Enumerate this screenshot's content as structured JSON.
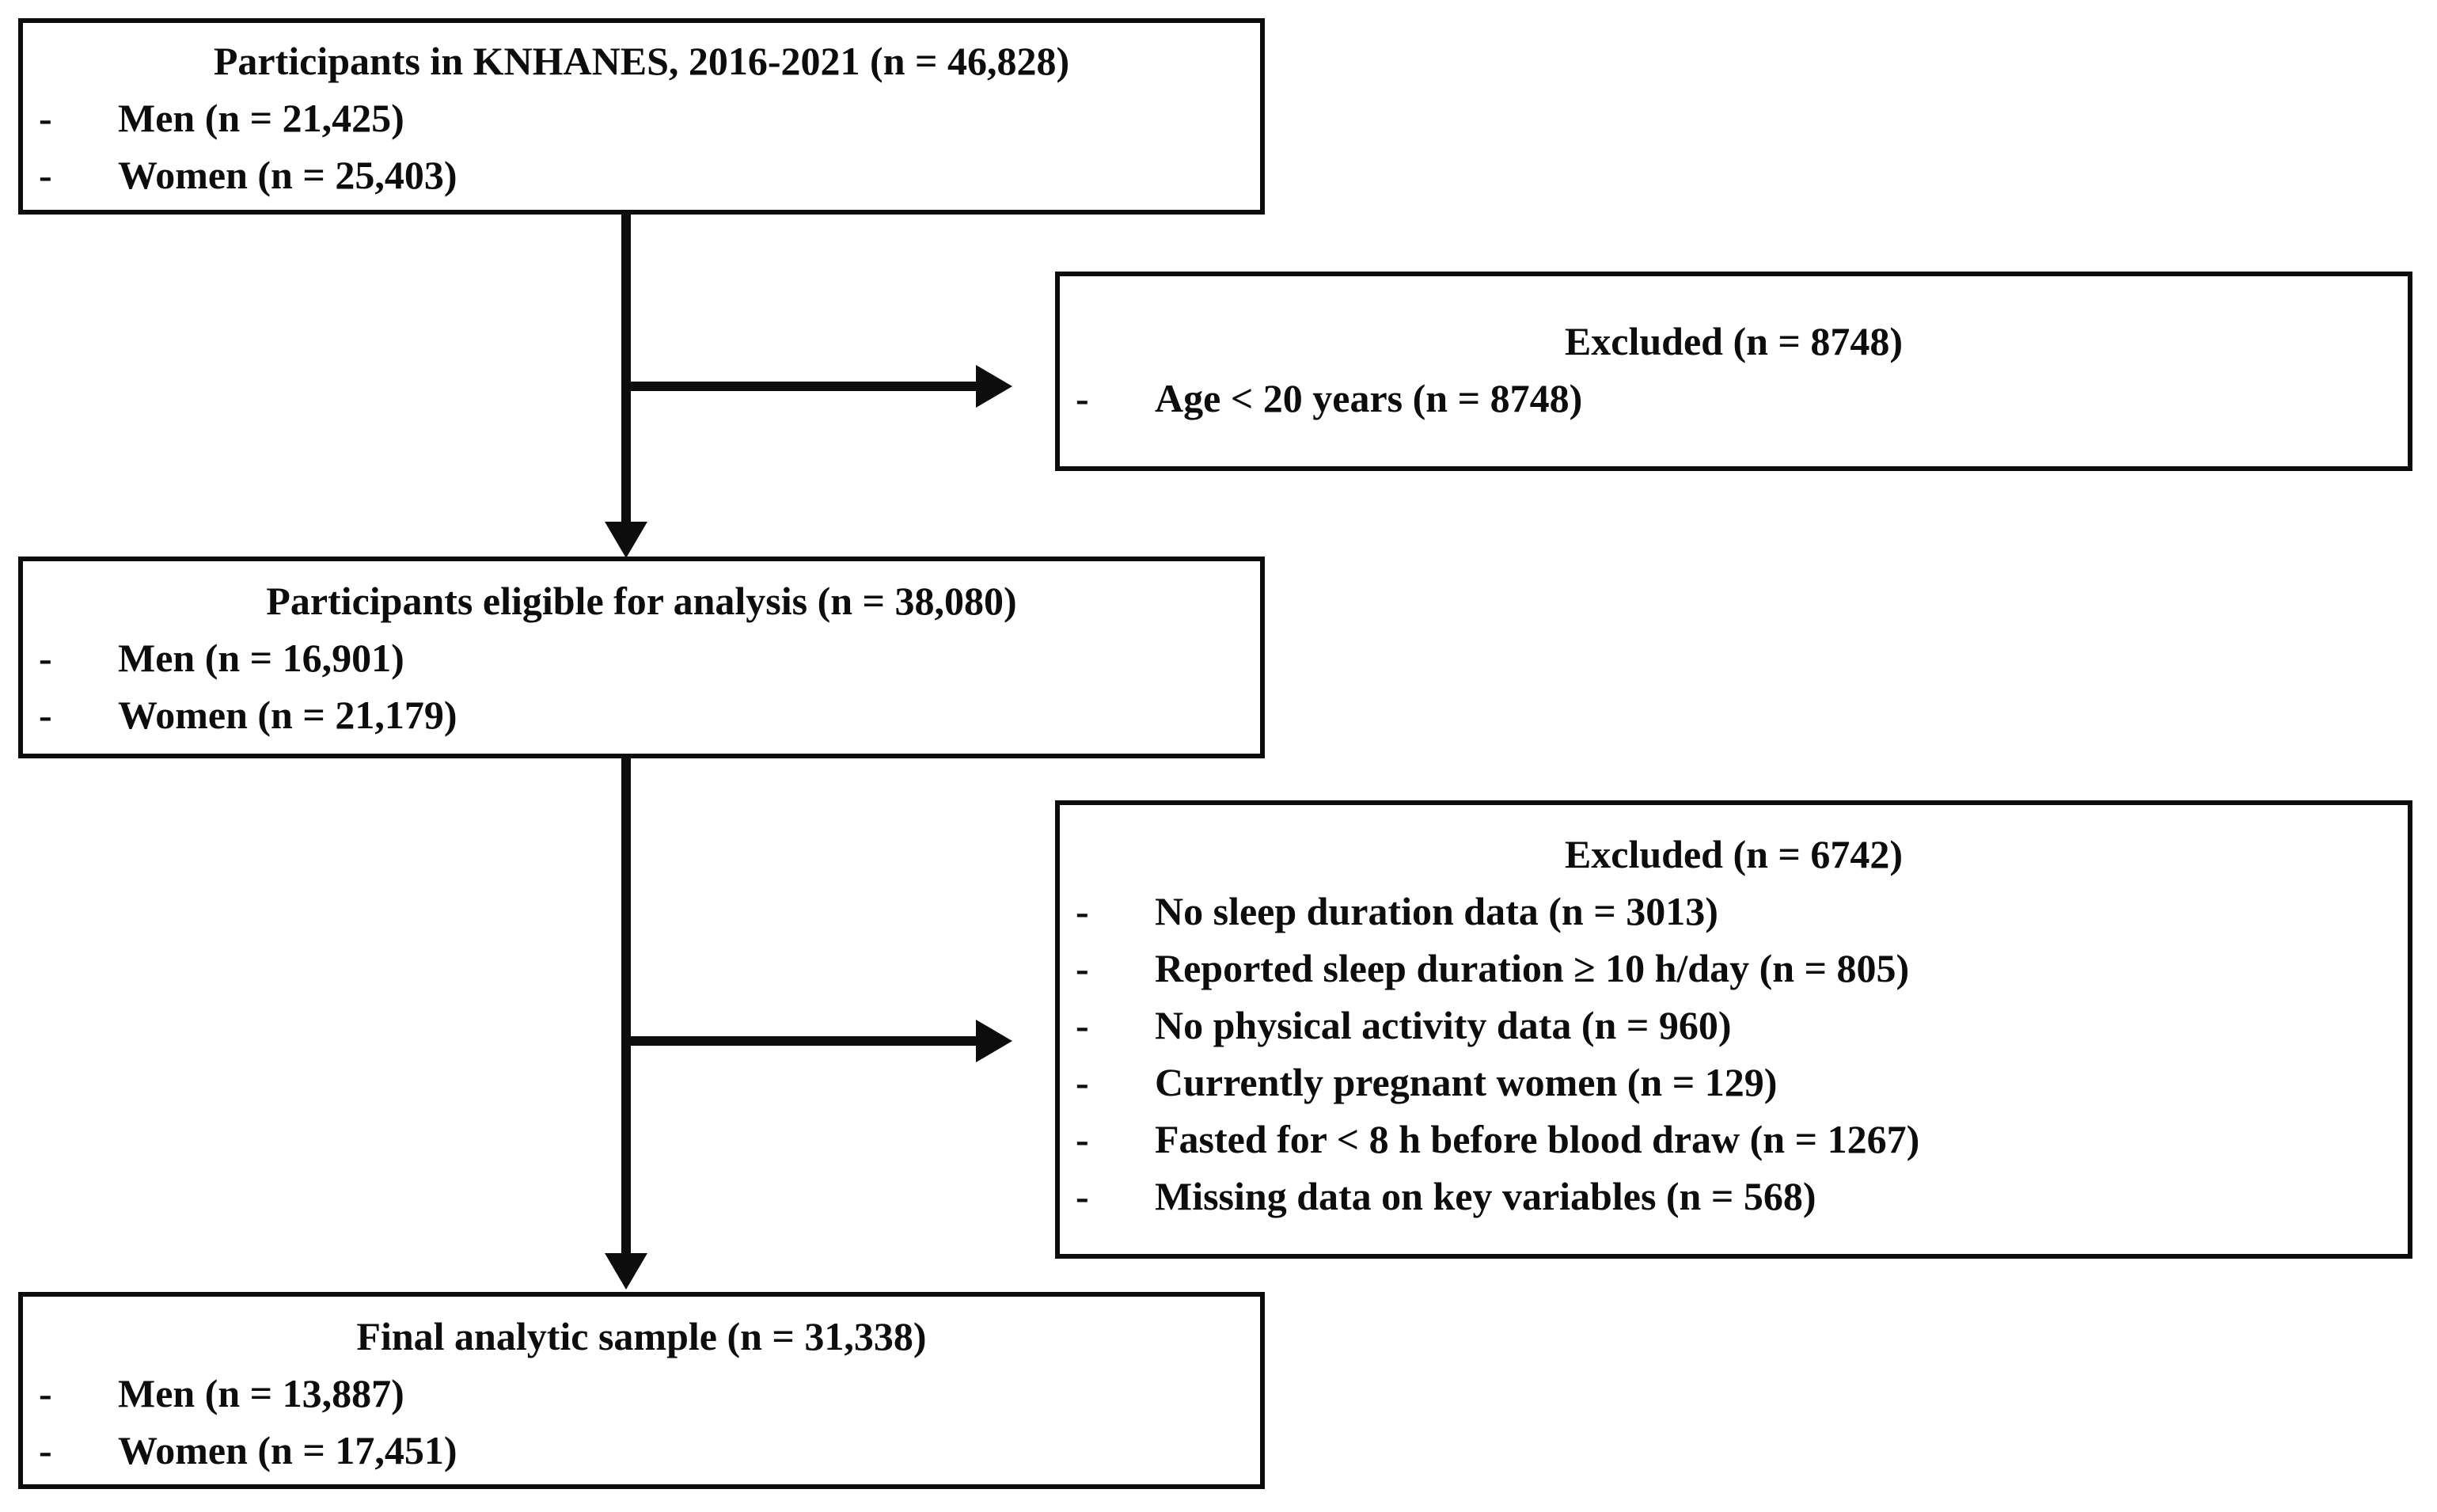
{
  "diagram": {
    "background_color": "#ffffff",
    "line_color": "#0d0d0d",
    "bullet_char": "-",
    "boxes": {
      "knhanes": {
        "title": "Participants in KNHANES, 2016-2021 (n = 46,828)",
        "items": [
          "Men (n = 21,425)",
          "Women (n = 25,403)"
        ]
      },
      "excluded1": {
        "title": "Excluded (n = 8748)",
        "items": [
          "Age < 20 years (n = 8748)"
        ]
      },
      "eligible": {
        "title": "Participants eligible for analysis (n = 38,080)",
        "items": [
          "Men (n = 16,901)",
          "Women (n = 21,179)"
        ]
      },
      "excluded2": {
        "title": "Excluded (n = 6742)",
        "items": [
          "No sleep duration data (n = 3013)",
          "Reported sleep duration ≥ 10 h/day (n = 805)",
          "No physical activity data (n = 960)",
          "Currently pregnant women (n = 129)",
          "Fasted for < 8 h before blood draw (n = 1267)",
          "Missing data on key variables (n = 568)"
        ]
      },
      "final": {
        "title": "Final analytic sample (n = 31,338)",
        "items": [
          "Men (n = 13,887)",
          "Women (n = 17,451)"
        ]
      }
    }
  }
}
